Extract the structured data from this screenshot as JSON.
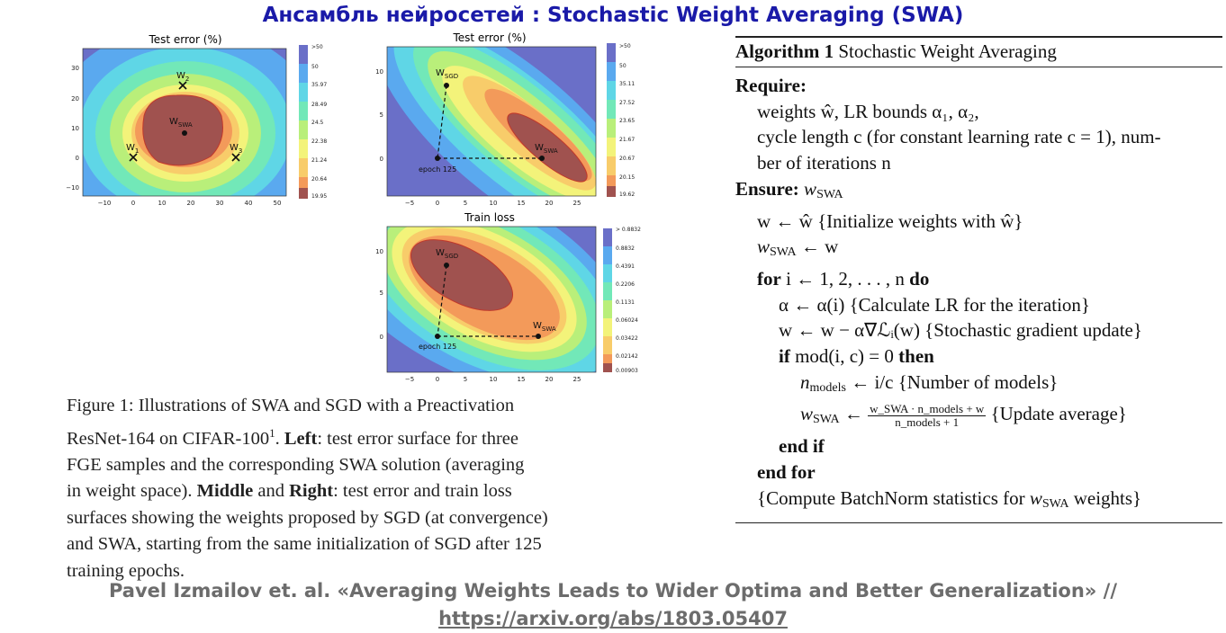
{
  "slide_title": "Ансамбль нейросетей : Stochastic Weight Averaging (SWA)",
  "plots": [
    {
      "title": "Test error (%)",
      "x_ticks": [
        "−10",
        "0",
        "10",
        "20",
        "30",
        "40",
        "50"
      ],
      "y_ticks": [
        "30",
        "20",
        "10",
        "0",
        "−10"
      ],
      "colorbar": [
        ">50",
        "50",
        "35.97",
        "28.49",
        "24.5",
        "22.38",
        "21.24",
        "20.64",
        "19.95"
      ],
      "points": [
        {
          "label": "W",
          "sub": "2"
        },
        {
          "label": "W",
          "sub": "SWA"
        },
        {
          "label": "W",
          "sub": "1"
        },
        {
          "label": "W",
          "sub": "3"
        }
      ]
    },
    {
      "title": "Test error (%)",
      "x_ticks": [
        "−5",
        "0",
        "5",
        "10",
        "15",
        "20",
        "25"
      ],
      "y_ticks": [
        "10",
        "5",
        "0"
      ],
      "colorbar": [
        ">50",
        "50",
        "35.11",
        "27.52",
        "23.65",
        "21.67",
        "20.67",
        "20.15",
        "19.62"
      ],
      "points": [
        {
          "label": "W",
          "sub": "SGD"
        },
        {
          "label": "W",
          "sub": "SWA"
        }
      ],
      "start_label": "epoch 125"
    },
    {
      "title": "Train loss",
      "x_ticks": [
        "−5",
        "0",
        "5",
        "10",
        "15",
        "20",
        "25"
      ],
      "y_ticks": [
        "10",
        "5",
        "0"
      ],
      "colorbar": [
        "> 0.8832",
        "0.8832",
        "0.4391",
        "0.2206",
        "0.1131",
        "0.06024",
        "0.03422",
        "0.02142",
        "0.00903"
      ],
      "points": [
        {
          "label": "W",
          "sub": "SGD"
        },
        {
          "label": "W",
          "sub": "SWA"
        }
      ],
      "start_label": "epoch 125"
    }
  ],
  "caption": {
    "fig_label": "Figure 1:",
    "l1": " Illustrations of SWA and SGD with a Preactivation",
    "l2a": "ResNet-164 on CIFAR-100",
    "l2sup": "1",
    "l2b": ".",
    "left_word": "Left",
    "l2c": ": test error surface for three",
    "l3": "FGE samples and the corresponding SWA solution (averaging",
    "l4a": "in weight space).",
    "middle_word": "Middle",
    "and_word": " and ",
    "right_word": "Right",
    "l4b": ": test error and train loss",
    "l5": "surfaces showing the weights proposed by SGD (at convergence)",
    "l6": "and SWA, starting from the same initialization of SGD after 125",
    "l7": "training epochs."
  },
  "algorithm": {
    "label": "Algorithm 1",
    "name": " Stochastic Weight Averaging",
    "require": "Require:",
    "req1": "weights ŵ, LR bounds α₁, α₂,",
    "req2": "cycle length c (for constant learning rate c = 1), num-",
    "req3": "ber of iterations n",
    "ensure": "Ensure:",
    "ens1_var": "w",
    "ens1_sub": "SWA",
    "s1": "w ← ŵ {Initialize weights with ŵ}",
    "s2_var": "w",
    "s2_sub": "SWA",
    "s2_rest": " ← w",
    "for_kw": "for",
    "for_expr": " i ← 1, 2, . . . , n ",
    "do_kw": "do",
    "s3": "α ← α(i) {Calculate LR for the iteration}",
    "s4": "w ← w − α∇ℒᵢ(w) {Stochastic gradient update}",
    "if_kw": "if",
    "if_expr": " mod(i, c) = 0 ",
    "then_kw": "then",
    "s5_var": "n",
    "s5_sub": "models",
    "s5_rest": " ← i/c {Number of models}",
    "s6_var": "w",
    "s6_sub": "SWA",
    "s6_arrow": " ← ",
    "s6_num": "w_SWA · n_models + w",
    "s6_den": "n_models + 1",
    "s6_comment": " {Update average}",
    "endif": "end if",
    "endfor": "end for",
    "last_a": "{Compute BatchNorm statistics for ",
    "last_var": "w",
    "last_sub": "SWA",
    "last_b": " weights}"
  },
  "footer": {
    "citation": "Pavel Izmailov et. al. «Averaging Weights Leads to Wider Optima and Better Generalization» //",
    "url": "https://arxiv.org/abs/1803.05407"
  },
  "colors": {
    "title": "#1a1aa8",
    "footer": "#6c6c6c",
    "contours": [
      "#6a6fc8",
      "#5aa9ef",
      "#5fd6e6",
      "#72e8b8",
      "#b9ef7a",
      "#f3f37a",
      "#f8cc6a",
      "#f39a5a",
      "#a0524f"
    ]
  }
}
